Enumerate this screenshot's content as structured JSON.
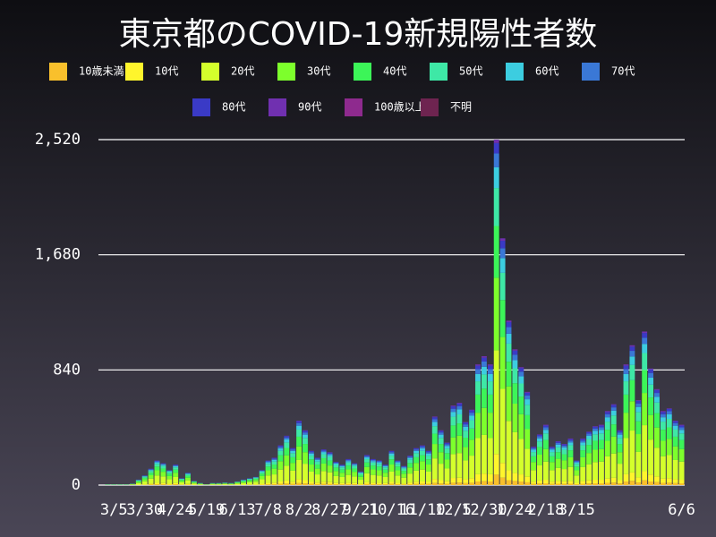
{
  "chart_data": {
    "type": "stacked_bar",
    "title": "東京都のCOVID-19新規陽性者数",
    "categories": [
      null,
      null,
      "3/5",
      null,
      null,
      null,
      null,
      "3/30",
      null,
      null,
      null,
      null,
      "4/24",
      null,
      null,
      null,
      null,
      "5/19",
      null,
      null,
      null,
      null,
      "6/13",
      null,
      null,
      null,
      null,
      "7/8",
      null,
      null,
      null,
      null,
      "8/2",
      null,
      null,
      null,
      null,
      "8/27",
      null,
      null,
      null,
      null,
      "9/21",
      null,
      null,
      null,
      null,
      "10/16",
      null,
      null,
      null,
      null,
      "11/10",
      null,
      null,
      null,
      null,
      "12/5",
      null,
      null,
      null,
      null,
      "12/30",
      null,
      null,
      null,
      null,
      "1/24",
      null,
      null,
      null,
      null,
      "2/18",
      null,
      null,
      null,
      null,
      "3/15",
      null,
      null,
      null,
      null,
      null,
      null,
      null,
      null,
      null,
      null,
      null,
      null,
      null,
      null,
      null,
      null,
      "6/6"
    ],
    "series": [
      {
        "name": "10歳未満",
        "color": "#f9c02c",
        "values": [
          0,
          0,
          0,
          0,
          0,
          0,
          1,
          2,
          4,
          5,
          5,
          3,
          5,
          2,
          3,
          1,
          0,
          0,
          0,
          0,
          1,
          0,
          1,
          1,
          2,
          2,
          3,
          5,
          6,
          9,
          11,
          8,
          14,
          12,
          8,
          6,
          8,
          7,
          5,
          5,
          6,
          5,
          3,
          7,
          6,
          5,
          5,
          8,
          5,
          4,
          6,
          8,
          9,
          8,
          15,
          12,
          9,
          17,
          18,
          14,
          17,
          26,
          28,
          26,
          76,
          54,
          36,
          30,
          26,
          20,
          8,
          11,
          13,
          8,
          10,
          9,
          10,
          5,
          10,
          12,
          13,
          13,
          16,
          18,
          12,
          26,
          31,
          19,
          34,
          26,
          21,
          16,
          17,
          14,
          13
        ]
      },
      {
        "name": "10代",
        "color": "#fff52c",
        "values": [
          0,
          0,
          0,
          0,
          0,
          1,
          2,
          4,
          7,
          11,
          10,
          7,
          9,
          3,
          5,
          2,
          1,
          0,
          1,
          1,
          1,
          1,
          2,
          2,
          3,
          4,
          7,
          11,
          12,
          17,
          22,
          16,
          28,
          24,
          15,
          12,
          16,
          14,
          10,
          9,
          11,
          10,
          6,
          13,
          11,
          11,
          9,
          15,
          11,
          8,
          13,
          16,
          17,
          15,
          30,
          24,
          19,
          35,
          36,
          28,
          33,
          53,
          56,
          53,
          151,
          108,
          72,
          59,
          52,
          41,
          17,
          22,
          26,
          17,
          19,
          18,
          20,
          11,
          20,
          23,
          26,
          26,
          32,
          35,
          24,
          53,
          61,
          37,
          67,
          51,
          42,
          32,
          34,
          28,
          26
        ]
      },
      {
        "name": "20代",
        "color": "#d4ff2c",
        "values": [
          0,
          1,
          1,
          1,
          1,
          3,
          12,
          21,
          36,
          54,
          48,
          33,
          45,
          15,
          27,
          9,
          5,
          2,
          5,
          5,
          6,
          5,
          8,
          12,
          15,
          18,
          33,
          54,
          60,
          87,
          108,
          81,
          141,
          120,
          75,
          60,
          78,
          72,
          51,
          45,
          57,
          48,
          30,
          66,
          57,
          54,
          45,
          75,
          54,
          42,
          65,
          81,
          87,
          75,
          150,
          120,
          93,
          174,
          180,
          138,
          165,
          264,
          282,
          264,
          756,
          540,
          360,
          297,
          258,
          204,
          84,
          111,
          132,
          84,
          96,
          90,
          102,
          54,
          102,
          117,
          129,
          132,
          162,
          177,
          120,
          264,
          306,
          186,
          336,
          255,
          210,
          162,
          168,
          141,
          132
        ]
      },
      {
        "name": "30代",
        "color": "#7dff2c",
        "values": [
          0,
          1,
          1,
          1,
          1,
          2,
          8,
          15,
          25,
          38,
          34,
          23,
          31,
          10,
          19,
          6,
          3,
          1,
          3,
          3,
          4,
          3,
          5,
          8,
          10,
          13,
          23,
          38,
          42,
          61,
          76,
          57,
          99,
          84,
          52,
          42,
          55,
          50,
          36,
          31,
          40,
          34,
          21,
          46,
          40,
          38,
          31,
          52,
          38,
          29,
          45,
          57,
          61,
          52,
          105,
          84,
          65,
          122,
          126,
          97,
          116,
          185,
          197,
          185,
          529,
          378,
          252,
          208,
          181,
          143,
          59,
          78,
          92,
          59,
          67,
          63,
          71,
          38,
          71,
          82,
          90,
          92,
          113,
          124,
          84,
          185,
          214,
          130,
          235,
          179,
          147,
          113,
          118,
          99,
          92
        ]
      },
      {
        "name": "40代",
        "color": "#3cf558",
        "values": [
          0,
          1,
          1,
          1,
          1,
          2,
          6,
          11,
          18,
          27,
          24,
          17,
          23,
          8,
          14,
          5,
          2,
          1,
          2,
          2,
          3,
          2,
          4,
          6,
          8,
          9,
          17,
          27,
          30,
          44,
          54,
          41,
          71,
          60,
          38,
          30,
          39,
          36,
          26,
          23,
          29,
          24,
          15,
          33,
          29,
          27,
          23,
          38,
          27,
          21,
          32,
          41,
          44,
          38,
          75,
          60,
          47,
          87,
          90,
          69,
          82,
          132,
          141,
          132,
          378,
          270,
          180,
          149,
          129,
          102,
          42,
          56,
          66,
          42,
          48,
          45,
          51,
          27,
          51,
          59,
          65,
          66,
          81,
          89,
          60,
          132,
          153,
          93,
          168,
          128,
          105,
          81,
          84,
          71,
          66
        ]
      },
      {
        "name": "50代",
        "color": "#3ee8a6",
        "values": [
          0,
          1,
          1,
          1,
          1,
          1,
          5,
          8,
          13,
          20,
          18,
          12,
          16,
          5,
          10,
          3,
          2,
          1,
          2,
          2,
          2,
          2,
          3,
          5,
          5,
          7,
          12,
          20,
          22,
          32,
          40,
          30,
          52,
          44,
          27,
          22,
          29,
          27,
          19,
          16,
          21,
          18,
          11,
          24,
          21,
          20,
          16,
          27,
          20,
          16,
          24,
          30,
          32,
          27,
          55,
          44,
          34,
          64,
          66,
          51,
          60,
          97,
          103,
          97,
          277,
          198,
          132,
          109,
          95,
          75,
          31,
          41,
          48,
          31,
          35,
          33,
          37,
          20,
          37,
          43,
          47,
          48,
          59,
          65,
          44,
          97,
          112,
          68,
          123,
          94,
          77,
          59,
          62,
          52,
          48
        ]
      },
      {
        "name": "60代",
        "color": "#3ccde0",
        "values": [
          0,
          1,
          1,
          1,
          1,
          1,
          3,
          4,
          7,
          11,
          10,
          7,
          9,
          3,
          5,
          2,
          1,
          0,
          1,
          1,
          1,
          1,
          1,
          3,
          3,
          4,
          7,
          11,
          12,
          17,
          22,
          16,
          28,
          24,
          15,
          12,
          16,
          14,
          10,
          9,
          11,
          10,
          6,
          13,
          11,
          11,
          9,
          15,
          11,
          8,
          13,
          16,
          17,
          15,
          30,
          24,
          19,
          35,
          36,
          28,
          33,
          53,
          56,
          53,
          151,
          108,
          72,
          59,
          52,
          41,
          17,
          22,
          26,
          17,
          19,
          18,
          20,
          11,
          20,
          23,
          26,
          26,
          32,
          35,
          24,
          53,
          61,
          37,
          67,
          51,
          42,
          32,
          34,
          28,
          26
        ]
      },
      {
        "name": "70代",
        "color": "#3a78d6",
        "values": [
          0,
          0,
          0,
          0,
          0,
          0,
          2,
          3,
          5,
          7,
          6,
          4,
          6,
          2,
          4,
          1,
          1,
          0,
          1,
          1,
          1,
          1,
          1,
          2,
          2,
          2,
          4,
          7,
          8,
          12,
          14,
          11,
          19,
          16,
          10,
          8,
          10,
          10,
          7,
          6,
          8,
          6,
          4,
          9,
          8,
          7,
          6,
          10,
          7,
          6,
          9,
          11,
          12,
          10,
          20,
          16,
          12,
          23,
          24,
          18,
          22,
          35,
          38,
          35,
          101,
          72,
          48,
          40,
          34,
          27,
          11,
          15,
          18,
          11,
          13,
          12,
          14,
          7,
          14,
          16,
          17,
          18,
          22,
          24,
          16,
          35,
          41,
          25,
          45,
          34,
          28,
          22,
          22,
          19,
          18
        ]
      },
      {
        "name": "80代",
        "color": "#3a3ac6",
        "values": [
          0,
          0,
          0,
          0,
          0,
          0,
          1,
          2,
          4,
          5,
          4,
          3,
          5,
          2,
          3,
          1,
          0,
          0,
          0,
          0,
          1,
          0,
          0,
          1,
          2,
          1,
          3,
          5,
          6,
          9,
          11,
          8,
          14,
          12,
          8,
          6,
          8,
          7,
          5,
          5,
          6,
          4,
          3,
          7,
          6,
          5,
          5,
          8,
          5,
          4,
          6,
          8,
          9,
          8,
          15,
          12,
          9,
          17,
          18,
          14,
          17,
          26,
          28,
          26,
          76,
          54,
          36,
          30,
          26,
          20,
          8,
          11,
          13,
          8,
          10,
          9,
          10,
          5,
          10,
          12,
          13,
          13,
          16,
          18,
          12,
          26,
          31,
          19,
          34,
          26,
          21,
          16,
          17,
          14,
          13
        ]
      },
      {
        "name": "90代",
        "color": "#7030b0",
        "values": [
          0,
          0,
          0,
          0,
          0,
          0,
          0,
          0,
          1,
          2,
          1,
          1,
          1,
          0,
          0,
          0,
          0,
          0,
          0,
          0,
          0,
          0,
          0,
          0,
          0,
          0,
          1,
          2,
          2,
          2,
          2,
          2,
          4,
          4,
          2,
          2,
          1,
          3,
          1,
          1,
          1,
          1,
          1,
          2,
          1,
          2,
          1,
          2,
          2,
          2,
          2,
          2,
          2,
          2,
          5,
          4,
          3,
          6,
          6,
          3,
          5,
          9,
          11,
          9,
          25,
          18,
          12,
          9,
          7,
          7,
          3,
          3,
          6,
          3,
          3,
          3,
          5,
          2,
          5,
          3,
          4,
          6,
          7,
          5,
          4,
          9,
          10,
          6,
          11,
          6,
          7,
          7,
          4,
          4,
          6
        ]
      },
      {
        "name": "100歳以上",
        "color": "#8e2a8e",
        "values": [
          0,
          0,
          0,
          0,
          0,
          0,
          0,
          0,
          0,
          0,
          0,
          0,
          0,
          0,
          0,
          0,
          0,
          0,
          0,
          0,
          0,
          0,
          0,
          0,
          0,
          0,
          0,
          0,
          0,
          0,
          0,
          0,
          0,
          0,
          0,
          0,
          0,
          0,
          0,
          0,
          0,
          0,
          0,
          0,
          0,
          0,
          0,
          0,
          0,
          0,
          0,
          0,
          0,
          0,
          0,
          0,
          0,
          0,
          0,
          0,
          0,
          0,
          0,
          0,
          0,
          0,
          0,
          0,
          0,
          0,
          0,
          0,
          0,
          0,
          0,
          0,
          0,
          0,
          0,
          0,
          0,
          0,
          0,
          0,
          0,
          0,
          0,
          0,
          0,
          0,
          0,
          0,
          0,
          0,
          0
        ]
      },
      {
        "name": "不明",
        "color": "#6e2450",
        "values": [
          0,
          0,
          0,
          0,
          0,
          0,
          0,
          0,
          0,
          0,
          0,
          0,
          0,
          0,
          0,
          0,
          0,
          0,
          0,
          0,
          0,
          0,
          0,
          0,
          0,
          0,
          0,
          0,
          0,
          0,
          0,
          0,
          0,
          0,
          0,
          0,
          0,
          0,
          0,
          0,
          0,
          0,
          0,
          0,
          0,
          0,
          0,
          0,
          0,
          0,
          0,
          0,
          0,
          0,
          0,
          0,
          0,
          0,
          0,
          0,
          0,
          0,
          0,
          0,
          0,
          0,
          0,
          0,
          0,
          0,
          0,
          0,
          0,
          0,
          0,
          0,
          0,
          0,
          0,
          0,
          0,
          0,
          0,
          0,
          0,
          0,
          0,
          0,
          0,
          0,
          0,
          0,
          0,
          0,
          0
        ]
      }
    ],
    "ylim": [
      0,
      2520
    ],
    "yticks": [
      0,
      840,
      {
        "value": 1680,
        "label": "1,680"
      },
      {
        "value": 2520,
        "label": "2,520"
      }
    ],
    "grid": true
  }
}
